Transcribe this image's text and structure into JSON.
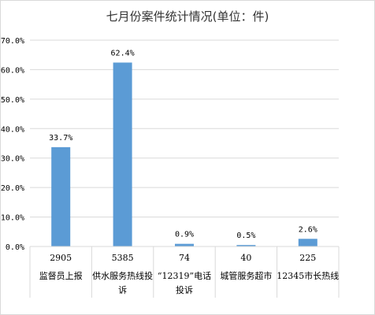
{
  "chart_data": {
    "type": "bar",
    "title": "七月份案件统计情况(单位：件)",
    "categories": [
      {
        "count": "2905",
        "name_lines": [
          "监督员上报"
        ]
      },
      {
        "count": "5385",
        "name_lines": [
          "供水服务热线投",
          "诉"
        ]
      },
      {
        "count": "74",
        "name_lines": [
          "“12319”电话",
          "投诉"
        ]
      },
      {
        "count": "40",
        "name_lines": [
          "城管服务超市"
        ]
      },
      {
        "count": "225",
        "name_lines": [
          "12345市长热线"
        ]
      }
    ],
    "values": [
      33.7,
      62.4,
      0.9,
      0.5,
      2.6
    ],
    "value_labels": [
      "33.7%",
      "62.4%",
      "0.9%",
      "0.5%",
      "2.6%"
    ],
    "y_ticks": [
      "0.0%",
      "10.0%",
      "20.0%",
      "30.0%",
      "40.0%",
      "50.0%",
      "60.0%",
      "70.0%"
    ],
    "ylim": [
      0,
      70
    ],
    "grid": true,
    "legend": "none",
    "colors": {
      "bar": "#5b9bd5",
      "grid": "#d9d9d9",
      "text": "#000000",
      "title": "#333333"
    }
  }
}
